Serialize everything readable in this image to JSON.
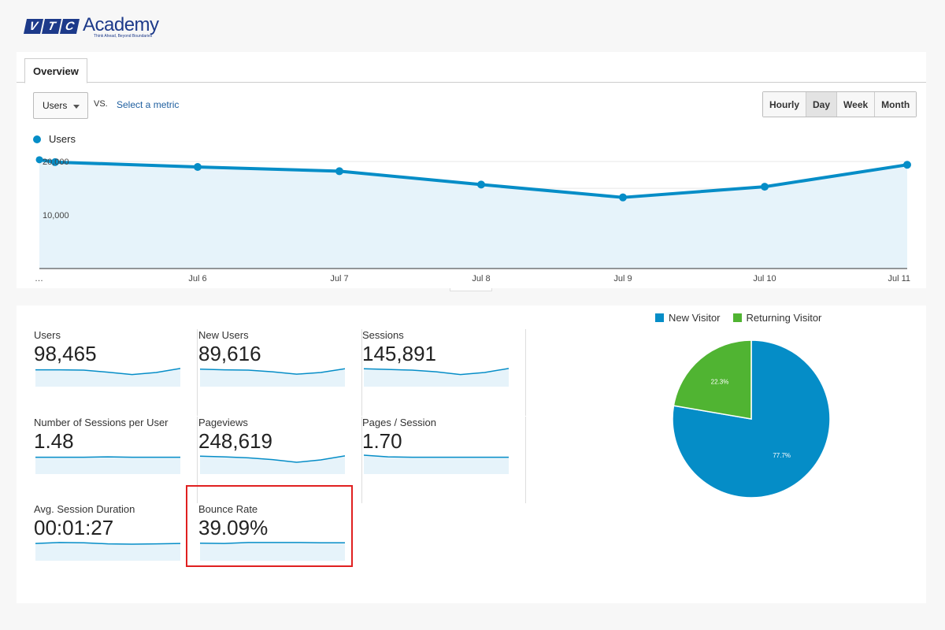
{
  "branding": {
    "letters": [
      "V",
      "T",
      "C"
    ],
    "name": "Academy",
    "tagline": "Think Ahead, Beyond Boundaries"
  },
  "tabs": [
    {
      "label": "Overview",
      "active": true
    }
  ],
  "controls": {
    "metric_select": "Users",
    "vs_label": "VS.",
    "select_metric_link": "Select a metric",
    "periods": [
      {
        "label": "Hourly",
        "active": false
      },
      {
        "label": "Day",
        "active": true
      },
      {
        "label": "Week",
        "active": false
      },
      {
        "label": "Month",
        "active": false
      }
    ]
  },
  "chart_data": [
    {
      "type": "area",
      "series": [
        {
          "name": "Users",
          "color": "#058dc7",
          "values": [
            19900,
            19000,
            18200,
            15700,
            13300,
            15300,
            19400
          ]
        }
      ],
      "x": [
        "…",
        "Jul 6",
        "Jul 7",
        "Jul 8",
        "Jul 9",
        "Jul 10",
        "Jul 11"
      ],
      "y_ticks": [
        "20,000",
        "10,000"
      ],
      "ylim": [
        0,
        21500
      ],
      "grid": true
    },
    {
      "type": "pie",
      "labels": [
        "New Visitor",
        "Returning Visitor"
      ],
      "values": [
        77.7,
        22.3
      ],
      "value_labels": [
        "77.7%",
        "22.3%"
      ],
      "colors": [
        "#058dc7",
        "#50b432"
      ],
      "legend_position": "top"
    }
  ],
  "metrics": [
    {
      "label": "Users",
      "value": "98,465",
      "spark": [
        5,
        5,
        4.9,
        4.3,
        3.6,
        4.2,
        5.4
      ]
    },
    {
      "label": "New Users",
      "value": "89,616",
      "spark": [
        5.2,
        5.0,
        4.9,
        4.4,
        3.7,
        4.2,
        5.3
      ]
    },
    {
      "label": "Sessions",
      "value": "145,891",
      "spark": [
        5.3,
        5.1,
        4.9,
        4.4,
        3.6,
        4.2,
        5.4
      ]
    },
    {
      "label": "Number of Sessions per User",
      "value": "1.48",
      "spark": [
        5,
        5,
        5,
        5.1,
        5,
        5,
        5
      ]
    },
    {
      "label": "Pageviews",
      "value": "248,619",
      "spark": [
        5.3,
        5.1,
        4.8,
        4.3,
        3.5,
        4.2,
        5.4
      ]
    },
    {
      "label": "Pages / Session",
      "value": "1.70",
      "spark": [
        5.6,
        5.1,
        5,
        5,
        5,
        5,
        5
      ]
    },
    {
      "label": "Avg. Session Duration",
      "value": "00:01:27",
      "spark": [
        5.1,
        5.4,
        5.3,
        5,
        4.9,
        5,
        5.1
      ]
    },
    {
      "label": "Bounce Rate",
      "value": "39.09%",
      "spark": [
        5.2,
        5.1,
        5.4,
        5.4,
        5.4,
        5.3,
        5.3
      ]
    }
  ]
}
